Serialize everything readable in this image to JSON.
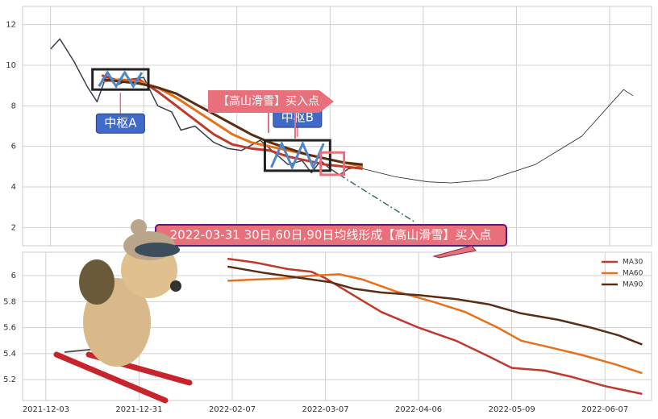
{
  "chart_data": [
    {
      "type": "line",
      "grid": true,
      "xlim": [
        -5,
        130
      ],
      "ylim": [
        1.1,
        12.9
      ],
      "xticks": [
        1,
        21,
        41,
        61,
        81,
        101,
        121
      ],
      "yticks": [
        2,
        4,
        6,
        8,
        10,
        12
      ],
      "series": [
        {
          "color": "#3a3f4c",
          "linewidth": 1.5,
          "x": [
            1,
            3,
            6,
            9,
            11,
            13,
            15,
            18,
            21,
            24,
            27,
            29,
            32,
            36,
            39,
            42,
            46,
            49,
            52,
            55,
            57,
            59,
            61,
            63,
            65,
            68
          ],
          "values": [
            10.8,
            11.3,
            10.2,
            8.9,
            8.2,
            9.5,
            9.0,
            9.3,
            9.4,
            8.0,
            7.7,
            6.8,
            7.0,
            6.2,
            5.9,
            5.8,
            6.3,
            5.7,
            5.1,
            5.3,
            4.7,
            5.3,
            4.9,
            4.6,
            4.9,
            5.0
          ]
        },
        {
          "color": "#c0392b",
          "linewidth": 3,
          "x": [
            12,
            16,
            20,
            24,
            28,
            32,
            36,
            40,
            44,
            48,
            52,
            56,
            60,
            64,
            68
          ],
          "values": [
            9.5,
            9.2,
            9.3,
            8.7,
            8.0,
            7.3,
            6.6,
            6.1,
            5.9,
            5.8,
            5.5,
            5.3,
            5.1,
            5.0,
            4.9
          ]
        },
        {
          "color": "#e8701a",
          "linewidth": 3,
          "x": [
            12,
            16,
            20,
            24,
            28,
            32,
            36,
            40,
            44,
            48,
            52,
            56,
            60,
            64,
            68
          ],
          "values": [
            9.2,
            9.3,
            9.2,
            8.9,
            8.4,
            7.8,
            7.2,
            6.6,
            6.2,
            6.0,
            5.8,
            5.6,
            5.4,
            5.2,
            5.0
          ]
        },
        {
          "color": "#5a2e14",
          "linewidth": 3,
          "x": [
            12,
            16,
            20,
            24,
            28,
            32,
            36,
            40,
            44,
            48,
            52,
            56,
            60,
            64,
            68
          ],
          "values": [
            9.3,
            9.2,
            9.1,
            8.9,
            8.6,
            8.1,
            7.6,
            7.1,
            6.6,
            6.2,
            5.9,
            5.6,
            5.4,
            5.2,
            5.1
          ]
        },
        {
          "color": "#3b6e6e",
          "linewidth": 1.5,
          "dash": true,
          "x": [
            63,
            79
          ],
          "values": [
            4.6,
            2.3
          ]
        },
        {
          "color": "#222222",
          "linewidth": 0.8,
          "x": [
            68,
            75,
            82,
            87,
            95,
            105,
            115,
            124,
            126
          ],
          "values": [
            4.9,
            4.5,
            4.25,
            4.2,
            4.35,
            5.1,
            6.5,
            8.8,
            8.5
          ]
        }
      ],
      "zones": [
        {
          "label": "中枢A",
          "x": [
            10,
            22
          ],
          "y": [
            8.8,
            9.8
          ],
          "color": "#222222"
        },
        {
          "label": "中枢B",
          "x": [
            47,
            61
          ],
          "y": [
            4.8,
            6.3
          ],
          "color": "#222222"
        },
        {
          "x": [
            59,
            64
          ],
          "y": [
            4.6,
            5.7
          ],
          "color": "#e8707a"
        }
      ],
      "annotation": "【高山滑雪】买入点"
    },
    {
      "type": "line",
      "grid": true,
      "legend": "upper right",
      "xlim": [
        -5,
        130
      ],
      "ylim": [
        5.04,
        6.18
      ],
      "xticks": [
        {
          "value": 0,
          "label": "2021-12-03"
        },
        {
          "value": 20,
          "label": "2021-12-31"
        },
        {
          "value": 40,
          "label": "2022-02-07"
        },
        {
          "value": 60,
          "label": "2022-03-07"
        },
        {
          "value": 80,
          "label": "2022-04-06"
        },
        {
          "value": 100,
          "label": "2022-05-09"
        },
        {
          "value": 120,
          "label": "2022-06-07"
        }
      ],
      "yticks": [
        5.2,
        5.4,
        5.6,
        5.8,
        6.0
      ],
      "series": [
        {
          "name": "MA30",
          "color": "#c0392b",
          "linewidth": 2.5,
          "x": [
            39,
            45,
            52,
            57,
            60,
            66,
            72,
            80,
            88,
            95,
            100,
            107,
            113,
            120,
            128
          ],
          "values": [
            6.13,
            6.1,
            6.05,
            6.03,
            5.98,
            5.85,
            5.72,
            5.6,
            5.5,
            5.38,
            5.29,
            5.27,
            5.22,
            5.15,
            5.09
          ]
        },
        {
          "name": "MA60",
          "color": "#e8701a",
          "linewidth": 2.5,
          "x": [
            39,
            45,
            52,
            57,
            63,
            68,
            75,
            83,
            90,
            97,
            102,
            108,
            115,
            122,
            128
          ],
          "values": [
            5.96,
            5.97,
            5.98,
            6.0,
            6.01,
            5.97,
            5.88,
            5.8,
            5.72,
            5.6,
            5.5,
            5.45,
            5.39,
            5.32,
            5.25
          ]
        },
        {
          "name": "MA90",
          "color": "#5a2e14",
          "linewidth": 2.5,
          "x": [
            39,
            47,
            55,
            61,
            66,
            72,
            80,
            88,
            95,
            102,
            110,
            117,
            123,
            128
          ],
          "values": [
            6.07,
            6.02,
            5.98,
            5.95,
            5.9,
            5.87,
            5.85,
            5.82,
            5.78,
            5.71,
            5.66,
            5.6,
            5.54,
            5.47
          ]
        }
      ],
      "annotation": "2022-03-31 30日,60日,90日均线形成【高山滑雪】买入点"
    }
  ]
}
